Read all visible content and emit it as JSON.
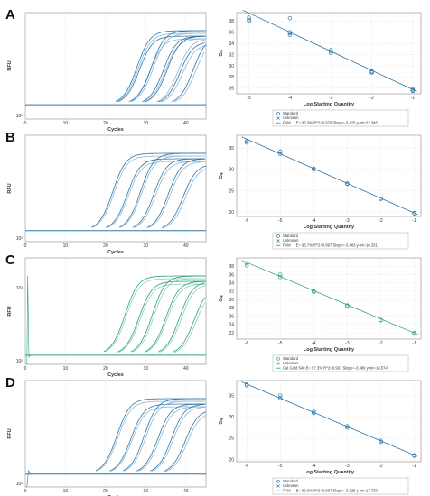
{
  "colors": {
    "blue": "#2f76a6",
    "green": "#2aa37a",
    "light_blue": "#8fb8d6",
    "light_green": "#8fd3b8"
  },
  "chart_data": [
    {
      "panel": "A",
      "type": "line",
      "subtype": "amplification",
      "xlabel": "Cycles",
      "ylabel": "RFU",
      "xlim": [
        0,
        45
      ],
      "yscale": "log",
      "x_ticks": [
        "0",
        "10",
        "20",
        "30",
        "40"
      ],
      "y_ticks": [
        "10²"
      ],
      "threshold": 0.24,
      "color": "blue",
      "curve_midpoints": [
        28.0,
        28.3,
        28.6,
        31.2,
        31.6,
        32.0,
        34.6,
        35.0,
        35.5,
        38.2,
        38.7,
        39.3,
        42.0,
        42.6
      ]
    },
    {
      "panel": "A",
      "type": "scatter",
      "subtype": "standard_curve",
      "xlabel": "Log Starting Quantity",
      "ylabel": "Cq",
      "xlim": [
        -5.3,
        -0.8
      ],
      "ylim": [
        25,
        39.5
      ],
      "x_ticks": [
        "-5",
        "-4",
        "-3",
        "-2",
        "-1"
      ],
      "y_ticks": [
        "26",
        "28",
        "30",
        "32",
        "34",
        "36",
        "38"
      ],
      "color": "blue",
      "points": [
        [
          -5,
          38.6
        ],
        [
          -5,
          38.2
        ],
        [
          -5,
          38.0
        ],
        [
          -4,
          38.5
        ],
        [
          -4,
          36.0
        ],
        [
          -4,
          35.8
        ],
        [
          -4,
          35.5
        ],
        [
          -3,
          32.8
        ],
        [
          -3,
          32.6
        ],
        [
          -3,
          32.3
        ],
        [
          -2,
          29.0
        ],
        [
          -2,
          28.9
        ],
        [
          -2,
          28.8
        ],
        [
          -1,
          25.8
        ],
        [
          -1,
          25.6
        ],
        [
          -1,
          25.5
        ]
      ],
      "fit": {
        "slope": -3.415,
        "intercept": 22.345
      },
      "legend": [
        "Standard",
        "Unknown",
        "FAM",
        "E= 96.3% R^2=0.970 Slope=-3.415 y-int=22.345"
      ]
    },
    {
      "panel": "B",
      "type": "line",
      "subtype": "amplification",
      "xlabel": "Cycles",
      "ylabel": "RFU",
      "xlim": [
        0,
        45
      ],
      "yscale": "log",
      "x_ticks": [
        "0",
        "10",
        "20",
        "30",
        "40"
      ],
      "y_ticks": [
        "10²"
      ],
      "threshold": 0.15,
      "color": "blue",
      "curve_midpoints": [
        22.0,
        22.3,
        25.6,
        25.9,
        28.9,
        29.2,
        32.2,
        32.6,
        35.8,
        36.2,
        39.5,
        40.0
      ]
    },
    {
      "panel": "B",
      "type": "scatter",
      "subtype": "standard_curve",
      "xlabel": "Log Starting Quantity",
      "ylabel": "Cq",
      "xlim": [
        -6.3,
        -0.8
      ],
      "ylim": [
        19,
        38
      ],
      "x_ticks": [
        "-6",
        "-5",
        "-4",
        "-3",
        "-2",
        "-1"
      ],
      "y_ticks": [
        "20",
        "25",
        "30",
        "35"
      ],
      "color": "blue",
      "points": [
        [
          -6,
          36.6
        ],
        [
          -6,
          36.3
        ],
        [
          -5,
          34.2
        ],
        [
          -5,
          33.6
        ],
        [
          -4,
          30.2
        ],
        [
          -4,
          30.0
        ],
        [
          -3,
          26.7
        ],
        [
          -3,
          26.6
        ],
        [
          -2,
          23.2
        ],
        [
          -2,
          23.1
        ],
        [
          -1,
          19.8
        ],
        [
          -1,
          19.7
        ]
      ],
      "fit": {
        "slope": -3.463,
        "intercept": 16.331
      },
      "legend": [
        "Standard",
        "Unknown",
        "FAM",
        "E= 93.7% R^2=0.997 Slope=-3.463 y-int=16.331"
      ]
    },
    {
      "panel": "C",
      "type": "line",
      "subtype": "amplification",
      "xlabel": "Cycles",
      "ylabel": "RFU",
      "xlim": [
        0,
        45
      ],
      "yscale": "log",
      "x_ticks": [
        "0",
        "10",
        "20",
        "30",
        "40"
      ],
      "y_ticks": [
        "10³",
        "10²"
      ],
      "threshold": 0.1,
      "color": "green",
      "curve_midpoints": [
        25.0,
        25.3,
        28.5,
        28.8,
        31.8,
        32.2,
        35.2,
        35.5,
        38.6,
        39.0,
        42.2,
        42.7
      ]
    },
    {
      "panel": "C",
      "type": "scatter",
      "subtype": "standard_curve",
      "xlabel": "Log Starting Quantity",
      "ylabel": "Cq",
      "xlim": [
        -6.3,
        -0.8
      ],
      "ylim": [
        20.5,
        40
      ],
      "x_ticks": [
        "-6",
        "-5",
        "-4",
        "-3",
        "-2",
        "-1"
      ],
      "y_ticks": [
        "22",
        "24",
        "26",
        "28",
        "30",
        "32",
        "34",
        "36",
        "38"
      ],
      "color": "green",
      "points": [
        [
          -6,
          38.7
        ],
        [
          -6,
          38.2
        ],
        [
          -5,
          36.0
        ],
        [
          -5,
          35.4
        ],
        [
          -4,
          32.0
        ],
        [
          -4,
          31.8
        ],
        [
          -3,
          28.6
        ],
        [
          -3,
          28.4
        ],
        [
          -2,
          25.1
        ],
        [
          -2,
          25.0
        ],
        [
          -1,
          22.0
        ],
        [
          -1,
          21.8
        ]
      ],
      "fit": {
        "slope": -3.389,
        "intercept": 18.574
      },
      "legend": [
        "Standard",
        "Unknown",
        "Cal Gold 540 E= 97.3% R^2=0.997 Slope=-3.389 y-int=18.574"
      ]
    },
    {
      "panel": "D",
      "type": "line",
      "subtype": "amplification",
      "xlabel": "Cycles",
      "ylabel": "RFU",
      "xlim": [
        0,
        45
      ],
      "yscale": "log",
      "x_ticks": [
        "0",
        "10",
        "20",
        "30",
        "40"
      ],
      "y_ticks": [
        "10²"
      ],
      "threshold": 0.2,
      "color": "blue",
      "curve_midpoints": [
        23.0,
        23.3,
        26.5,
        26.8,
        29.8,
        30.2,
        33.2,
        33.6,
        36.6,
        37.0,
        40.0,
        40.5
      ]
    },
    {
      "panel": "D",
      "type": "scatter",
      "subtype": "standard_curve",
      "xlabel": "Log Starting Quantity",
      "ylabel": "Cq",
      "xlim": [
        -6.3,
        -0.8
      ],
      "ylim": [
        19.5,
        38.5
      ],
      "x_ticks": [
        "-6",
        "-5",
        "-4",
        "-3",
        "-2",
        "-1"
      ],
      "y_ticks": [
        "20",
        "25",
        "30",
        "35"
      ],
      "color": "blue",
      "points": [
        [
          -6,
          37.6
        ],
        [
          -6,
          37.4
        ],
        [
          -5,
          35.0
        ],
        [
          -5,
          34.4
        ],
        [
          -4,
          31.2
        ],
        [
          -4,
          30.9
        ],
        [
          -3,
          27.8
        ],
        [
          -3,
          27.5
        ],
        [
          -2,
          24.4
        ],
        [
          -2,
          24.1
        ],
        [
          -1,
          21.0
        ],
        [
          -1,
          20.9
        ]
      ],
      "fit": {
        "slope": -3.325,
        "intercept": 17.73
      },
      "legend": [
        "Standard",
        "Unknown",
        "FAM",
        "E= 99.9% R^2=0.997 Slope=-3.325 y-int=17.730"
      ]
    }
  ]
}
